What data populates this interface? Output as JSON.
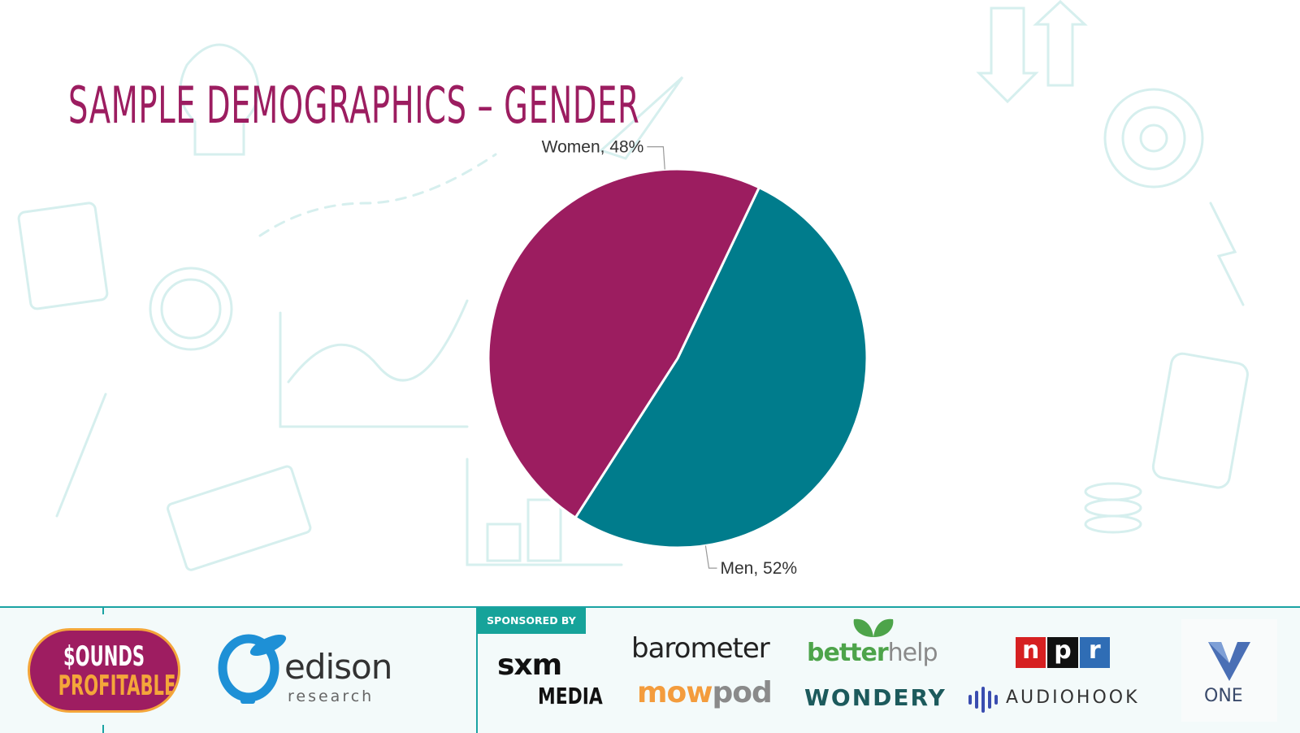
{
  "slide": {
    "title": "SAMPLE DEMOGRAPHICS – GENDER"
  },
  "chart_data": {
    "type": "pie",
    "title": "",
    "slices": [
      {
        "label": "Men",
        "value": 52,
        "display": "Men, 52%",
        "color": "#007c8c"
      },
      {
        "label": "Women",
        "value": 48,
        "display": "Women, 48%",
        "color": "#9c1d60"
      }
    ],
    "legend": "none",
    "labels_outside": true
  },
  "footer": {
    "logos": {
      "sounds_profitable_line1": "$OUNDS",
      "sounds_profitable_line2": "PROFITABLE",
      "edison_name": "edison",
      "edison_sub": "research"
    },
    "sponsored_by": "SPONSORED BY",
    "sponsors": {
      "sxm_line1": "sxm",
      "sxm_line2": "MEDIA",
      "barometer": "barometer",
      "mowpod_a": "mow",
      "mowpod_b": "pod",
      "betterhelp_a": "better",
      "betterhelp_b": "help",
      "wondery": "WONDERY",
      "npr_n": "n",
      "npr_p": "p",
      "npr_r": "r",
      "audiohook": "AUDIOHOOK",
      "one": "ONE"
    }
  },
  "colors": {
    "accent": "#9c1d60",
    "teal": "#007c8c",
    "rule": "#1aa3a3"
  }
}
